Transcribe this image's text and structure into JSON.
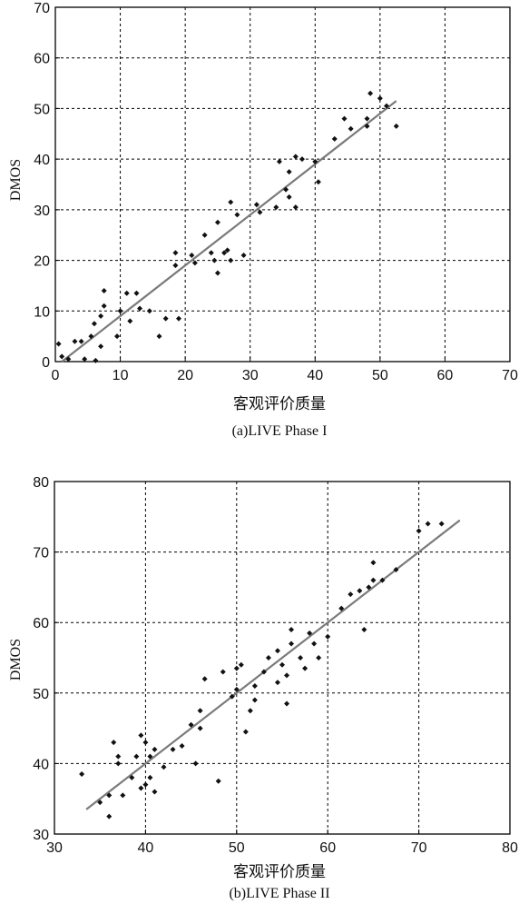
{
  "chart_data": [
    {
      "type": "scatter",
      "xlabel": "客观评价质量",
      "ylabel": "DMOS",
      "caption": "(a)LIVE Phase I",
      "xlim": [
        0,
        70
      ],
      "ylim": [
        0,
        70
      ],
      "xticks": [
        0,
        10,
        20,
        30,
        40,
        50,
        60,
        70
      ],
      "yticks": [
        0,
        10,
        20,
        30,
        40,
        50,
        60,
        70
      ],
      "grid": true,
      "points": [
        [
          0.5,
          3.5
        ],
        [
          1,
          1
        ],
        [
          2,
          0.5
        ],
        [
          3,
          4
        ],
        [
          4,
          4
        ],
        [
          4.5,
          0.5
        ],
        [
          5.5,
          5
        ],
        [
          6,
          7.5
        ],
        [
          6.2,
          0.2
        ],
        [
          7,
          3
        ],
        [
          7,
          9
        ],
        [
          7.5,
          11
        ],
        [
          7.5,
          14
        ],
        [
          9.5,
          5
        ],
        [
          10,
          10
        ],
        [
          11,
          13.5
        ],
        [
          11.5,
          8
        ],
        [
          12.5,
          13.5
        ],
        [
          13,
          10.5
        ],
        [
          14.5,
          10
        ],
        [
          16,
          5
        ],
        [
          17,
          8.5
        ],
        [
          18.5,
          19
        ],
        [
          18.5,
          21.5
        ],
        [
          19,
          8.5
        ],
        [
          21,
          21
        ],
        [
          21.5,
          19.5
        ],
        [
          23,
          25
        ],
        [
          24,
          21.5
        ],
        [
          24.5,
          20
        ],
        [
          25,
          17.5
        ],
        [
          25,
          27.5
        ],
        [
          26,
          21.5
        ],
        [
          26.5,
          22
        ],
        [
          27,
          20
        ],
        [
          27,
          31.5
        ],
        [
          28,
          29
        ],
        [
          29,
          21
        ],
        [
          31,
          31
        ],
        [
          31.5,
          29.5
        ],
        [
          34,
          30.5
        ],
        [
          34.5,
          39.5
        ],
        [
          35.5,
          34
        ],
        [
          36,
          32.5
        ],
        [
          36,
          37.5
        ],
        [
          37,
          40.5
        ],
        [
          37,
          30.5
        ],
        [
          38,
          40
        ],
        [
          40,
          39.5
        ],
        [
          40.5,
          35.5
        ],
        [
          43,
          44
        ],
        [
          44.5,
          48
        ],
        [
          45.5,
          46
        ],
        [
          48,
          46.5
        ],
        [
          48,
          48
        ],
        [
          48.5,
          53
        ],
        [
          50,
          52
        ],
        [
          51,
          50.5
        ],
        [
          52.5,
          46.5
        ]
      ],
      "fit_line": {
        "x": [
          1,
          52.5
        ],
        "y": [
          0,
          51.5
        ]
      }
    },
    {
      "type": "scatter",
      "xlabel": "客观评价质量",
      "ylabel": "DMOS",
      "caption": "(b)LIVE Phase II",
      "xlim": [
        30,
        80
      ],
      "ylim": [
        30,
        80
      ],
      "xticks": [
        30,
        40,
        50,
        60,
        70,
        80
      ],
      "yticks": [
        30,
        40,
        50,
        60,
        70,
        80
      ],
      "grid": true,
      "points": [
        [
          33,
          38.5
        ],
        [
          35,
          34.5
        ],
        [
          36,
          32.5
        ],
        [
          36,
          35.5
        ],
        [
          36.5,
          43
        ],
        [
          37,
          40
        ],
        [
          37,
          41
        ],
        [
          37.5,
          35.5
        ],
        [
          38.5,
          38
        ],
        [
          39,
          41
        ],
        [
          39.5,
          44
        ],
        [
          39.5,
          36.5
        ],
        [
          40,
          43
        ],
        [
          40,
          37
        ],
        [
          40.5,
          41
        ],
        [
          40.5,
          38
        ],
        [
          41,
          36
        ],
        [
          41,
          42
        ],
        [
          42,
          39.5
        ],
        [
          43,
          42
        ],
        [
          44,
          42.5
        ],
        [
          45,
          45.5
        ],
        [
          45.5,
          40
        ],
        [
          46,
          47.5
        ],
        [
          46,
          45
        ],
        [
          46.5,
          52
        ],
        [
          48,
          37.5
        ],
        [
          48.5,
          53
        ],
        [
          49.5,
          49.5
        ],
        [
          50,
          50.5
        ],
        [
          50,
          53.5
        ],
        [
          50.5,
          54
        ],
        [
          51,
          44.5
        ],
        [
          51.5,
          47.5
        ],
        [
          52,
          49
        ],
        [
          52,
          51
        ],
        [
          53,
          53
        ],
        [
          53.5,
          55
        ],
        [
          54.5,
          56
        ],
        [
          54.5,
          51.5
        ],
        [
          55,
          54
        ],
        [
          55.5,
          52.5
        ],
        [
          55.5,
          48.5
        ],
        [
          56,
          59
        ],
        [
          56,
          57
        ],
        [
          57,
          55
        ],
        [
          57.5,
          53.5
        ],
        [
          58,
          58.5
        ],
        [
          58.5,
          57
        ],
        [
          59,
          55
        ],
        [
          60,
          58
        ],
        [
          61.5,
          62
        ],
        [
          62.5,
          64
        ],
        [
          63.5,
          64.5
        ],
        [
          64,
          59
        ],
        [
          64.5,
          65
        ],
        [
          65,
          68.5
        ],
        [
          65,
          66
        ],
        [
          66,
          66
        ],
        [
          67.5,
          67.5
        ],
        [
          70,
          73
        ],
        [
          71,
          74
        ],
        [
          72.5,
          74
        ]
      ],
      "fit_line": {
        "x": [
          33.5,
          74.5
        ],
        "y": [
          33.5,
          74.5
        ]
      }
    }
  ]
}
